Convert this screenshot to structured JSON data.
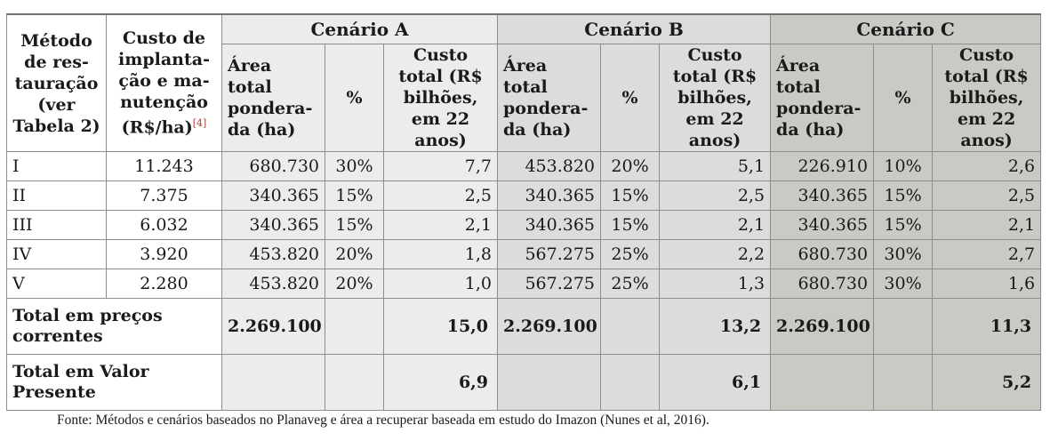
{
  "header": {
    "method": "Método de res­tauração (ver Tabela 2)",
    "cost_impl": "Custo de implanta­ção e ma­nutenção (R$/ha)",
    "cost_impl_footnote": "[4]",
    "scenario_a": "Cenário A",
    "scenario_b": "Cenário B",
    "scenario_c": "Cenário C",
    "area": "Área total pondera­da (ha)",
    "pct": "%",
    "total_cost": "Custo total (R$ bi­lhões, em 22 anos)"
  },
  "rows": [
    {
      "method": "I",
      "cost": "11.243",
      "a_area": "680.730",
      "a_pct": "30%",
      "a_cost": "7,7",
      "b_area": "453.820",
      "b_pct": "20%",
      "b_cost": "5,1",
      "c_area": "226.910",
      "c_pct": "10%",
      "c_cost": "2,6"
    },
    {
      "method": "II",
      "cost": "7.375",
      "a_area": "340.365",
      "a_pct": "15%",
      "a_cost": "2,5",
      "b_area": "340.365",
      "b_pct": "15%",
      "b_cost": "2,5",
      "c_area": "340.365",
      "c_pct": "15%",
      "c_cost": "2,5"
    },
    {
      "method": "III",
      "cost": "6.032",
      "a_area": "340.365",
      "a_pct": "15%",
      "a_cost": "2,1",
      "b_area": "340.365",
      "b_pct": "15%",
      "b_cost": "2,1",
      "c_area": "340.365",
      "c_pct": "15%",
      "c_cost": "2,1"
    },
    {
      "method": "IV",
      "cost": "3.920",
      "a_area": "453.820",
      "a_pct": "20%",
      "a_cost": "1,8",
      "b_area": "567.275",
      "b_pct": "25%",
      "b_cost": "2,2",
      "c_area": "680.730",
      "c_pct": "30%",
      "c_cost": "2,7"
    },
    {
      "method": "V",
      "cost": "2.280",
      "a_area": "453.820",
      "a_pct": "20%",
      "a_cost": "1,0",
      "b_area": "567.275",
      "b_pct": "25%",
      "b_cost": "1,3",
      "c_area": "680.730",
      "c_pct": "30%",
      "c_cost": "1,6"
    }
  ],
  "totals": {
    "current_label": "Total em preços correntes",
    "current_a_area": "2.269.100",
    "current_a_cost": "15,0",
    "current_b_area": "2.269.100",
    "current_b_cost": "13,2",
    "current_c_area": "2.269.100",
    "current_c_cost": "11,3",
    "pv_label": "Total em Valor Presente",
    "pv_a_cost": "6,9",
    "pv_b_cost": "6,1",
    "pv_c_cost": "5,2"
  },
  "source": "Fonte: Métodos e cenários baseados no Planaveg e área a recuperar baseada em estudo do Imazon (Nunes et al, 2016)."
}
